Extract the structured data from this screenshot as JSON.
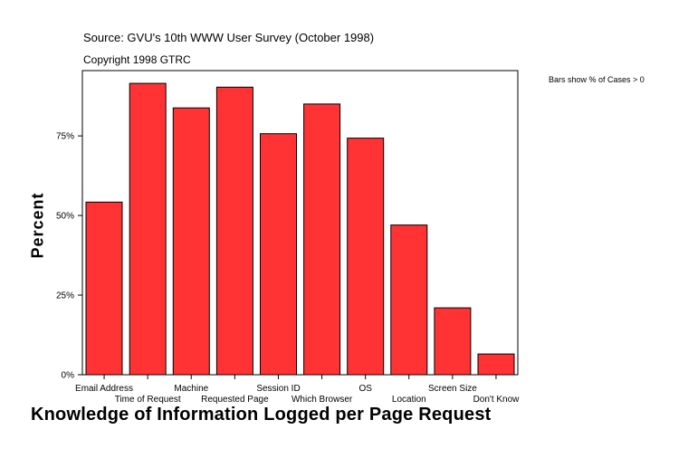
{
  "header": {
    "source": "Source: GVU's 10th WWW User Survey (October 1998)",
    "copyright": "Copyright 1998 GTRC"
  },
  "note": "Bars show % of Cases > 0",
  "chart_data": {
    "type": "bar",
    "xlabel": "Knowledge of Information Logged per Page Request",
    "ylabel": "Percent",
    "categories": [
      "Email Address",
      "Time of Request",
      "Machine",
      "Requested Page",
      "Session ID",
      "Which Browser",
      "OS",
      "Location",
      "Screen Size",
      "Don't Know"
    ],
    "values": [
      54.2,
      91.5,
      83.8,
      90.3,
      75.7,
      85.0,
      74.3,
      47.0,
      21.0,
      6.5
    ],
    "yticks": [
      "0%",
      "25%",
      "50%",
      "75%"
    ],
    "ytick_values": [
      0,
      25,
      50,
      75
    ],
    "ylim": [
      0,
      95.5
    ],
    "bar_color": "#ff3333",
    "grid": false,
    "legend": "none"
  }
}
